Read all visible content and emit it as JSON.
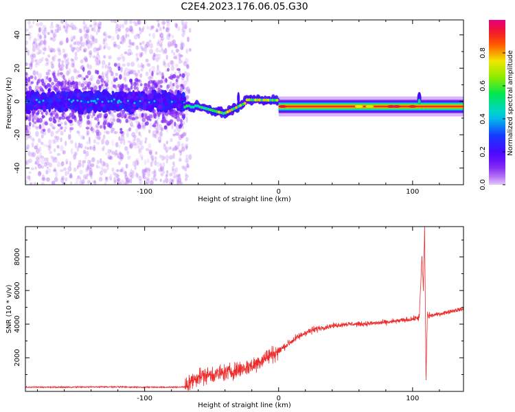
{
  "title": "C2E4.2023.176.06.05.G30",
  "colors": {
    "snr_line": "#ee2a2a",
    "axis": "#000000",
    "background": "#ffffff"
  },
  "chart_data": [
    {
      "type": "heatmap",
      "xlabel": "Height of straight line (km)",
      "ylabel": "Frequency (Hz)",
      "xlim": [
        -189,
        138
      ],
      "ylim": [
        -50,
        49
      ],
      "x_ticks": [
        -100,
        0,
        100
      ],
      "y_ticks": [
        -40,
        -20,
        0,
        20,
        40
      ],
      "colorbar": {
        "label": "Normalized spectral amplitude",
        "range": [
          0,
          1
        ],
        "ticks": [
          "0.0",
          "0.2",
          "0.4",
          "0.6",
          "0.8"
        ],
        "colormap": "rainbow (purple-blue-cyan-green-yellow-red-magenta)"
      },
      "features": {
        "noise_region_x": [
          -189,
          -70
        ],
        "dominant_band_x": [
          0,
          138
        ],
        "dominant_band_frequency_hz": -3
      }
    },
    {
      "type": "line",
      "xlabel": "Height of straight line (km)",
      "ylabel": "SNR (10 * v/v)",
      "xlim": [
        -189,
        138
      ],
      "ylim": [
        0,
        9800
      ],
      "x_ticks": [
        -100,
        0,
        100
      ],
      "y_ticks": [
        2000,
        4000,
        6000,
        8000
      ],
      "series": [
        {
          "x": [
            -189,
            -160,
            -130,
            -100,
            -80,
            -70,
            -65,
            -60,
            -50,
            -40,
            -30,
            -20,
            -10,
            0,
            10,
            20,
            30,
            40,
            50,
            60,
            70,
            80,
            90,
            100,
            105,
            107,
            108,
            109,
            110,
            111,
            113,
            120,
            130,
            138
          ],
          "y": [
            250,
            250,
            270,
            250,
            250,
            260,
            600,
            900,
            1000,
            1100,
            1300,
            1500,
            2000,
            2400,
            3000,
            3500,
            3750,
            3900,
            4000,
            4000,
            4050,
            4100,
            4200,
            4300,
            4400,
            8000,
            6000,
            9800,
            700,
            4500,
            4500,
            4600,
            4800,
            4900
          ]
        }
      ]
    }
  ]
}
